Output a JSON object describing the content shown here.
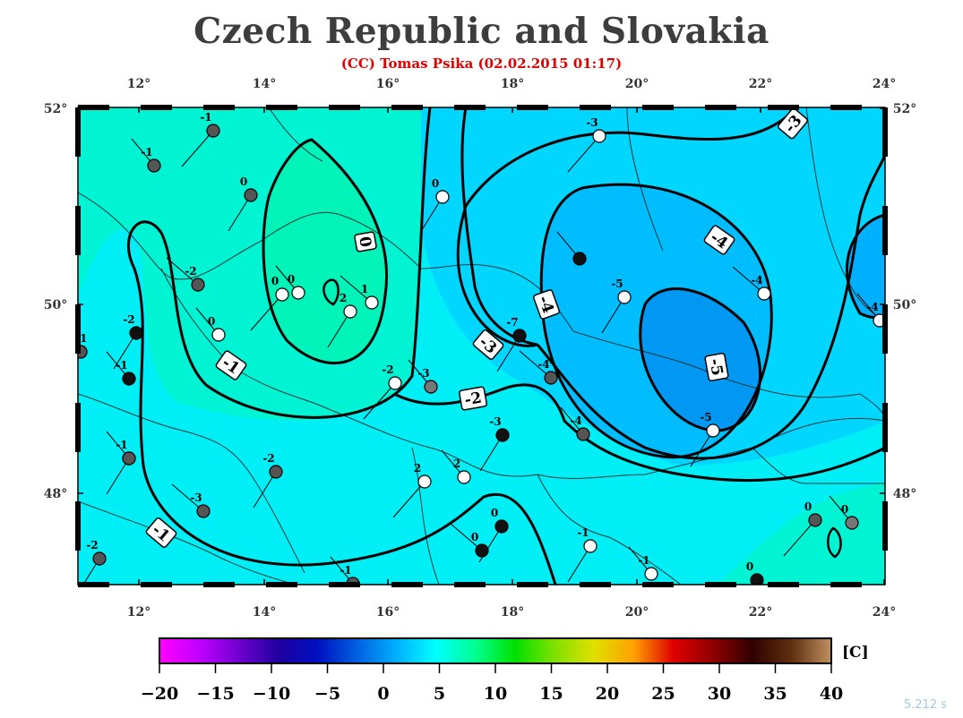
{
  "title": "Czech Republic and Slovakia",
  "subtitle": "(CC) Tomas Psika (02.02.2015 01:17)",
  "timing": "5.212 s",
  "axes": {
    "lon_ticks": [
      "12°",
      "14°",
      "16°",
      "18°",
      "20°",
      "22°",
      "24°"
    ],
    "lat_ticks": [
      "52°",
      "50°",
      "48°"
    ]
  },
  "isotherm_labels": [
    "0",
    "-1",
    "-1",
    "-2",
    "-3",
    "-3",
    "-4",
    "-4",
    "-5"
  ],
  "stations": [
    {
      "v": "-1",
      "fill": "#555555"
    },
    {
      "v": "-1",
      "fill": "#555555"
    },
    {
      "v": "0",
      "fill": "#555555"
    },
    {
      "v": "-2",
      "fill": "#555555"
    },
    {
      "v": "-2",
      "fill": "#111111"
    },
    {
      "v": "0",
      "fill": "#ffffff"
    },
    {
      "v": "0",
      "fill": "#ffffff"
    },
    {
      "v": "0",
      "fill": "#ffffff"
    },
    {
      "v": "2",
      "fill": "#ffffff"
    },
    {
      "v": "1",
      "fill": "#ffffff"
    },
    {
      "v": "0",
      "fill": "#ffffff"
    },
    {
      "v": "-1",
      "fill": "#111111"
    },
    {
      "v": "-1 -1",
      "fill": "#555555"
    },
    {
      "v": "-1",
      "fill": "#555555"
    },
    {
      "v": "-2",
      "fill": "#555555"
    },
    {
      "v": "-3",
      "fill": "#555555"
    },
    {
      "v": "-2",
      "fill": "#555555"
    },
    {
      "v": "-1",
      "fill": "#555555"
    },
    {
      "v": "-2",
      "fill": "#ffffff"
    },
    {
      "v": "-3",
      "fill": "#777777"
    },
    {
      "v": "-7",
      "fill": "#111111"
    },
    {
      "v": "-4",
      "fill": "#555555"
    },
    {
      "v": "-3",
      "fill": "#111111"
    },
    {
      "v": "-4",
      "fill": "#555555"
    },
    {
      "v": "2",
      "fill": "#ffffff"
    },
    {
      "v": "2",
      "fill": "#ffffff"
    },
    {
      "v": "0",
      "fill": "#111111"
    },
    {
      "v": "0",
      "fill": "#111111"
    },
    {
      "v": "-1",
      "fill": "#ffffff"
    },
    {
      "v": "-1",
      "fill": "#ffffff"
    },
    {
      "v": "-3",
      "fill": "#ffffff"
    },
    {
      "v": "",
      "fill": "#111111"
    },
    {
      "v": "-5",
      "fill": "#ffffff"
    },
    {
      "v": "-4",
      "fill": "#ffffff"
    },
    {
      "v": "-5",
      "fill": "#ffffff"
    },
    {
      "v": "-4",
      "fill": "#ffffff"
    },
    {
      "v": "0",
      "fill": "#555555"
    },
    {
      "v": "0",
      "fill": "#777777"
    },
    {
      "v": "0",
      "fill": "#111111"
    },
    {
      "v": "-1",
      "fill": "#555555"
    },
    {
      "v": "",
      "fill": "#555555"
    }
  ],
  "colorbar": {
    "unit": "[C]",
    "ticks": [
      "−20",
      "−15",
      "−10",
      "−5",
      "0",
      "5",
      "10",
      "15",
      "20",
      "25",
      "30",
      "35",
      "40"
    ],
    "stops": [
      "#ff00ff",
      "#c000ff",
      "#7000d0",
      "#2000a0",
      "#0010c0",
      "#0060e0",
      "#00b0ff",
      "#00ffff",
      "#00ff90",
      "#00e000",
      "#80e000",
      "#e0e000",
      "#ffa000",
      "#e00000",
      "#900000",
      "#300000",
      "#603010",
      "#c09060"
    ]
  },
  "colors": {
    "field_warm": "#00f0c0",
    "field_mid": "#00eeff",
    "field_cold": "#00b8ff",
    "field_core": "#0090f0"
  }
}
